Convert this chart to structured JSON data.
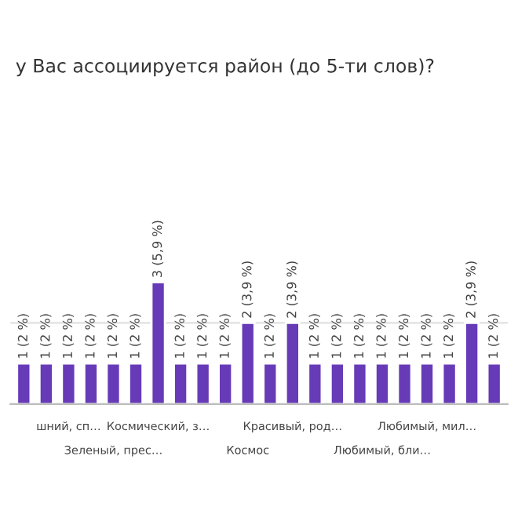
{
  "chart_data": {
    "type": "bar",
    "title": "у Вас ассоциируется район (до 5-ти слов)?",
    "categories": [
      null,
      null,
      "шний, сп…",
      null,
      "Зеленый, прес…",
      null,
      "Космический, з…",
      null,
      null,
      null,
      "Космос",
      null,
      "Красивый, род…",
      null,
      null,
      null,
      "Любимый, бли…",
      null,
      "Любимый, мил…",
      null,
      null,
      null
    ],
    "values": [
      1,
      1,
      1,
      1,
      1,
      1,
      3,
      1,
      1,
      1,
      2,
      1,
      2,
      1,
      1,
      1,
      1,
      1,
      1,
      1,
      2,
      1
    ],
    "value_labels": [
      "1 (2 %)",
      "1 (2 %)",
      "1 (2 %)",
      "1 (2 %)",
      "1 (2 %)",
      "1 (2 %)",
      "3 (5,9 %)",
      "1 (2 %)",
      "1 (2 %)",
      "1 (2 %)",
      "2 (3,9 %)",
      "1 (2 %)",
      "2 (3,9 %)",
      "1 (2 %)",
      "1 (2 %)",
      "1 (2 %)",
      "1 (2 %)",
      "1 (2 %)",
      "1 (2 %)",
      "1 (2 %)",
      "2 (3,9 %)",
      "1 (2 %)"
    ],
    "color": "#673ab7",
    "ylim": [
      0,
      3
    ],
    "yticks": [
      {
        "value": 0,
        "label": null
      },
      {
        "value": 2,
        "label": null
      }
    ],
    "tick_labels": "x",
    "grid": "y",
    "legend": false
  }
}
